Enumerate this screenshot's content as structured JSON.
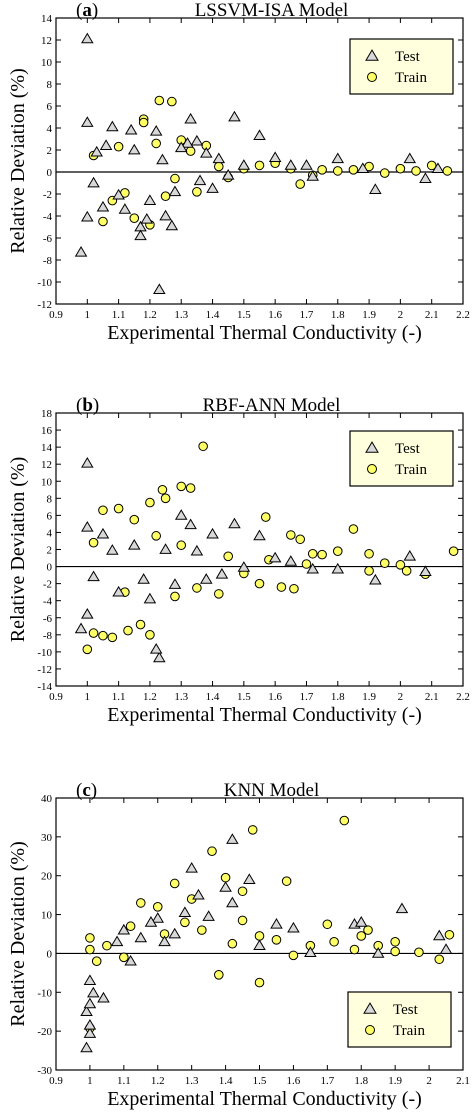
{
  "colors": {
    "train_fill": "#ffff66",
    "test_fill": "#d8d8d8",
    "legend_bg": "#ffffdd",
    "stroke": "#000000"
  },
  "chart_data": [
    {
      "type": "scatter",
      "panel_label": "a",
      "title": "LSSVM-ISA Model",
      "xlabel": "Experimental Thermal Conductivity (-)",
      "ylabel": "Relative Deviation (%)",
      "xlim": [
        0.9,
        2.2
      ],
      "ylim": [
        -12,
        14
      ],
      "xticks": [
        "0.9",
        "1",
        "1.1",
        "1.2",
        "1.3",
        "1.4",
        "1.5",
        "1.6",
        "1.7",
        "1.8",
        "1.9",
        "2",
        "2.1",
        "2.2"
      ],
      "yticks": [
        "-12",
        "-10",
        "-8",
        "-6",
        "-4",
        "-2",
        "0",
        "2",
        "4",
        "6",
        "8",
        "10",
        "12",
        "14"
      ],
      "zero_line": true,
      "legend": {
        "position": "top-right",
        "entries": [
          {
            "name": "Test",
            "marker": "triangle"
          },
          {
            "name": "Train",
            "marker": "circle"
          }
        ]
      },
      "series": [
        {
          "name": "Test",
          "marker": "triangle",
          "points": [
            [
              1.0,
              12.1
            ],
            [
              1.0,
              4.5
            ],
            [
              0.98,
              -7.3
            ],
            [
              1.0,
              -4.1
            ],
            [
              1.08,
              4.1
            ],
            [
              1.14,
              3.8
            ],
            [
              1.17,
              -5.0
            ],
            [
              1.17,
              -5.8
            ],
            [
              1.19,
              -4.3
            ],
            [
              1.23,
              -10.7
            ],
            [
              1.22,
              3.7
            ],
            [
              1.27,
              -4.9
            ],
            [
              1.25,
              -4.0
            ],
            [
              1.33,
              4.8
            ],
            [
              1.32,
              2.6
            ],
            [
              1.35,
              2.8
            ],
            [
              1.38,
              1.7
            ],
            [
              1.4,
              -1.5
            ],
            [
              1.42,
              1.2
            ],
            [
              1.47,
              5.0
            ],
            [
              1.5,
              0.6
            ],
            [
              1.55,
              3.3
            ],
            [
              1.6,
              1.3
            ],
            [
              1.65,
              0.6
            ],
            [
              1.7,
              0.6
            ],
            [
              1.72,
              -0.4
            ],
            [
              1.8,
              1.2
            ],
            [
              1.88,
              0.3
            ],
            [
              1.92,
              -1.6
            ],
            [
              2.03,
              1.2
            ],
            [
              2.08,
              -0.6
            ],
            [
              2.12,
              0.3
            ],
            [
              1.03,
              1.8
            ],
            [
              1.05,
              -3.2
            ],
            [
              1.12,
              -3.4
            ],
            [
              1.15,
              2.0
            ],
            [
              1.2,
              -2.6
            ],
            [
              1.28,
              -1.8
            ],
            [
              1.3,
              2.2
            ],
            [
              1.02,
              -1.0
            ],
            [
              1.06,
              2.4
            ],
            [
              1.1,
              -2.1
            ],
            [
              1.24,
              1.1
            ],
            [
              1.36,
              -0.8
            ],
            [
              1.45,
              -0.3
            ]
          ]
        },
        {
          "name": "Train",
          "marker": "circle",
          "points": [
            [
              1.23,
              6.5
            ],
            [
              1.27,
              6.4
            ],
            [
              1.18,
              4.8
            ],
            [
              1.18,
              4.5
            ],
            [
              1.2,
              -4.8
            ],
            [
              1.05,
              -4.5
            ],
            [
              1.15,
              -4.2
            ],
            [
              1.38,
              2.4
            ],
            [
              1.3,
              2.9
            ],
            [
              1.42,
              0.5
            ],
            [
              1.55,
              0.6
            ],
            [
              1.65,
              0.3
            ],
            [
              1.68,
              -1.1
            ],
            [
              1.75,
              0.2
            ],
            [
              1.8,
              0.1
            ],
            [
              1.85,
              0.2
            ],
            [
              1.9,
              0.5
            ],
            [
              1.95,
              -0.1
            ],
            [
              2.05,
              0.1
            ],
            [
              2.1,
              0.6
            ],
            [
              2.15,
              0.1
            ],
            [
              1.45,
              -0.5
            ],
            [
              1.5,
              0.3
            ],
            [
              1.35,
              -1.8
            ],
            [
              1.33,
              1.9
            ],
            [
              1.1,
              2.3
            ],
            [
              1.08,
              -2.6
            ],
            [
              1.02,
              1.5
            ],
            [
              1.12,
              -1.9
            ],
            [
              1.25,
              -2.2
            ],
            [
              1.22,
              2.6
            ],
            [
              1.28,
              -0.6
            ],
            [
              1.6,
              0.8
            ],
            [
              1.72,
              -0.3
            ],
            [
              2.0,
              0.3
            ]
          ]
        }
      ]
    },
    {
      "type": "scatter",
      "panel_label": "b",
      "title": "RBF-ANN Model",
      "xlabel": "Experimental Thermal Conductivity (-)",
      "ylabel": "Relative Deviation (%)",
      "xlim": [
        0.9,
        2.2
      ],
      "ylim": [
        -14,
        18
      ],
      "xticks": [
        "0.9",
        "1",
        "1.1",
        "1.2",
        "1.3",
        "1.4",
        "1.5",
        "1.6",
        "1.7",
        "1.8",
        "1.9",
        "2",
        "2.1",
        "2.2"
      ],
      "yticks": [
        "-14",
        "-12",
        "-10",
        "-8",
        "-6",
        "-4",
        "-2",
        "0",
        "2",
        "4",
        "6",
        "8",
        "10",
        "12",
        "14",
        "16",
        "18"
      ],
      "zero_line": true,
      "legend": {
        "position": "top-right",
        "entries": [
          {
            "name": "Test",
            "marker": "triangle"
          },
          {
            "name": "Train",
            "marker": "circle"
          }
        ]
      },
      "series": [
        {
          "name": "Test",
          "marker": "triangle",
          "points": [
            [
              1.0,
              12.1
            ],
            [
              1.0,
              4.6
            ],
            [
              0.98,
              -7.3
            ],
            [
              1.0,
              -5.6
            ],
            [
              1.05,
              3.8
            ],
            [
              1.23,
              -10.7
            ],
            [
              1.22,
              -9.7
            ],
            [
              1.3,
              6.0
            ],
            [
              1.33,
              4.9
            ],
            [
              1.4,
              3.8
            ],
            [
              1.47,
              5.0
            ],
            [
              1.55,
              3.6
            ],
            [
              1.6,
              1.0
            ],
            [
              1.65,
              0.6
            ],
            [
              1.72,
              -0.3
            ],
            [
              1.8,
              -0.3
            ],
            [
              1.92,
              -1.6
            ],
            [
              2.03,
              1.2
            ],
            [
              2.08,
              -0.6
            ],
            [
              1.1,
              -3.0
            ],
            [
              1.15,
              2.5
            ],
            [
              1.2,
              -3.8
            ],
            [
              1.28,
              -2.1
            ],
            [
              1.35,
              1.8
            ],
            [
              1.38,
              -1.5
            ],
            [
              1.43,
              -0.9
            ],
            [
              1.5,
              -0.1
            ],
            [
              1.02,
              -1.2
            ],
            [
              1.08,
              1.9
            ],
            [
              1.18,
              -1.5
            ],
            [
              1.25,
              2.0
            ]
          ]
        },
        {
          "name": "Train",
          "marker": "circle",
          "points": [
            [
              1.37,
              14.1
            ],
            [
              1.24,
              9.0
            ],
            [
              1.3,
              9.4
            ],
            [
              1.33,
              9.2
            ],
            [
              1.25,
              8.0
            ],
            [
              1.2,
              7.5
            ],
            [
              1.57,
              5.8
            ],
            [
              1.65,
              3.7
            ],
            [
              1.68,
              3.2
            ],
            [
              1.85,
              4.4
            ],
            [
              1.72,
              1.5
            ],
            [
              1.75,
              1.4
            ],
            [
              1.8,
              1.8
            ],
            [
              1.9,
              1.5
            ],
            [
              1.95,
              0.4
            ],
            [
              2.02,
              -0.5
            ],
            [
              2.08,
              -0.9
            ],
            [
              2.17,
              1.8
            ],
            [
              1.62,
              -2.4
            ],
            [
              1.66,
              -2.6
            ],
            [
              1.55,
              -2.0
            ],
            [
              1.42,
              -3.2
            ],
            [
              1.0,
              -9.7
            ],
            [
              1.05,
              -8.1
            ],
            [
              1.02,
              -7.8
            ],
            [
              1.08,
              -8.3
            ],
            [
              1.13,
              -7.5
            ],
            [
              1.2,
              -8.0
            ],
            [
              1.17,
              -6.8
            ],
            [
              1.1,
              6.8
            ],
            [
              1.05,
              6.6
            ],
            [
              1.15,
              5.5
            ],
            [
              1.35,
              -2.5
            ],
            [
              1.45,
              1.2
            ],
            [
              1.5,
              -0.8
            ],
            [
              1.28,
              -3.5
            ],
            [
              1.22,
              3.6
            ],
            [
              1.12,
              -3.0
            ],
            [
              1.3,
              2.5
            ],
            [
              1.58,
              0.8
            ],
            [
              1.7,
              0.3
            ],
            [
              1.9,
              -0.5
            ],
            [
              2.0,
              0.2
            ],
            [
              1.02,
              2.8
            ]
          ]
        }
      ]
    },
    {
      "type": "scatter",
      "panel_label": "c",
      "title": "KNN Model",
      "xlabel": "Experimental Thermal Conductivity (-)",
      "ylabel": "Relative Deviation (%)",
      "xlim": [
        0.9,
        2.1
      ],
      "ylim": [
        -30,
        40
      ],
      "xticks": [
        "0.9",
        "1",
        "1.1",
        "1.2",
        "1.3",
        "1.4",
        "1.5",
        "1.6",
        "1.7",
        "1.8",
        "1.9",
        "2",
        "2.1"
      ],
      "yticks": [
        "-30",
        "-20",
        "-10",
        "0",
        "10",
        "20",
        "30",
        "40"
      ],
      "zero_line": true,
      "legend": {
        "position": "bottom-right",
        "entries": [
          {
            "name": "Test",
            "marker": "triangle"
          },
          {
            "name": "Train",
            "marker": "circle"
          }
        ]
      },
      "series": [
        {
          "name": "Test",
          "marker": "triangle",
          "points": [
            [
              0.99,
              -24.3
            ],
            [
              1.0,
              -20.6
            ],
            [
              1.0,
              -18.5
            ],
            [
              0.99,
              -15.0
            ],
            [
              1.0,
              -13.0
            ],
            [
              1.01,
              -10.2
            ],
            [
              1.04,
              -11.5
            ],
            [
              1.0,
              -7.0
            ],
            [
              1.3,
              21.9
            ],
            [
              1.42,
              29.3
            ],
            [
              1.47,
              19.0
            ],
            [
              1.4,
              17.0
            ],
            [
              1.42,
              13.0
            ],
            [
              1.35,
              9.5
            ],
            [
              1.32,
              15.0
            ],
            [
              1.28,
              10.5
            ],
            [
              1.55,
              7.5
            ],
            [
              1.6,
              6.5
            ],
            [
              1.78,
              7.5
            ],
            [
              1.8,
              8.0
            ],
            [
              1.92,
              11.5
            ],
            [
              2.03,
              4.5
            ],
            [
              2.05,
              1.0
            ],
            [
              1.85,
              0.0
            ],
            [
              1.65,
              0.2
            ],
            [
              1.1,
              6.0
            ],
            [
              1.15,
              4.0
            ],
            [
              1.2,
              9.0
            ],
            [
              1.25,
              5.0
            ],
            [
              1.08,
              3.0
            ],
            [
              1.12,
              -2.0
            ],
            [
              1.18,
              8.0
            ],
            [
              1.22,
              3.0
            ],
            [
              1.5,
              2.0
            ]
          ]
        },
        {
          "name": "Train",
          "marker": "circle",
          "points": [
            [
              1.75,
              34.2
            ],
            [
              1.48,
              31.8
            ],
            [
              1.36,
              26.3
            ],
            [
              1.58,
              18.6
            ],
            [
              1.4,
              19.5
            ],
            [
              1.45,
              16.0
            ],
            [
              1.25,
              18.0
            ],
            [
              1.3,
              14.0
            ],
            [
              1.45,
              8.5
            ],
            [
              1.2,
              12.0
            ],
            [
              1.15,
              13.0
            ],
            [
              1.38,
              -5.5
            ],
            [
              1.5,
              -7.5
            ],
            [
              1.5,
              4.5
            ],
            [
              1.55,
              3.5
            ],
            [
              1.65,
              2.0
            ],
            [
              1.7,
              7.5
            ],
            [
              1.72,
              3.0
            ],
            [
              1.8,
              4.5
            ],
            [
              1.82,
              6.0
            ],
            [
              1.85,
              2.0
            ],
            [
              1.9,
              0.5
            ],
            [
              1.97,
              0.3
            ],
            [
              2.03,
              -1.5
            ],
            [
              2.06,
              4.8
            ],
            [
              1.0,
              4.0
            ],
            [
              1.0,
              1.0
            ],
            [
              1.0,
              -19.2
            ],
            [
              1.02,
              -2.0
            ],
            [
              1.05,
              2.0
            ],
            [
              1.1,
              -1.0
            ],
            [
              1.12,
              7.0
            ],
            [
              1.22,
              5.0
            ],
            [
              1.28,
              8.0
            ],
            [
              1.33,
              6.0
            ],
            [
              1.42,
              2.5
            ],
            [
              1.6,
              -0.5
            ],
            [
              1.78,
              1.0
            ],
            [
              1.9,
              3.0
            ]
          ]
        }
      ]
    }
  ]
}
